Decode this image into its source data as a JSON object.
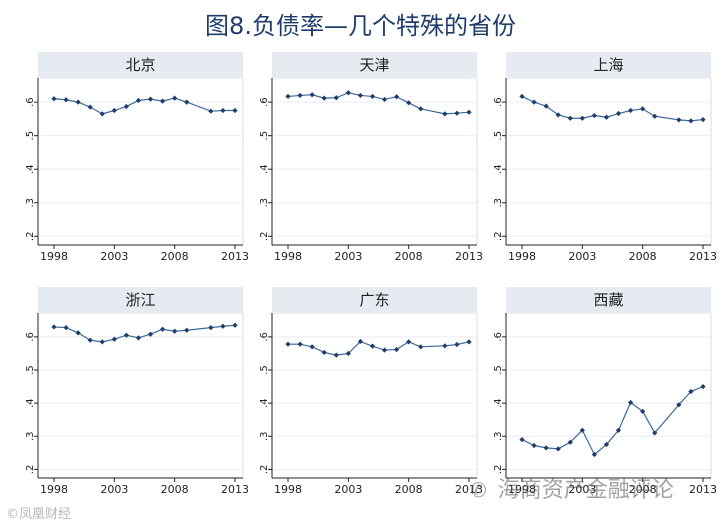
{
  "title": "图8.负债率—几个特殊的省份",
  "watermark_left": "©凤凰财经",
  "watermark_right": "海商资产金融评论",
  "colors": {
    "line": "#3d6a99",
    "marker": "#1f3d6b",
    "panel_bg": "#ffffff",
    "plot_bg": "#e6ebf1",
    "header_bg": "#e6ebf1",
    "title_color": "#1f3d6b"
  },
  "chart_data": [
    {
      "type": "line",
      "title": "北京",
      "x": [
        1998,
        1999,
        2000,
        2001,
        2002,
        2003,
        2004,
        2005,
        2006,
        2007,
        2008,
        2009,
        2011,
        2012,
        2013
      ],
      "y": [
        0.61,
        0.607,
        0.6,
        0.585,
        0.565,
        0.575,
        0.587,
        0.605,
        0.609,
        0.603,
        0.612,
        0.6,
        0.573,
        0.575,
        0.575
      ],
      "xticks": [
        1998,
        2003,
        2008,
        2013
      ],
      "yticks": [
        0.2,
        0.3,
        0.4,
        0.5,
        0.6
      ],
      "ytick_labels": [
        ".2",
        ".3",
        ".4",
        ".5",
        ".6"
      ],
      "xlim": [
        1998,
        2013
      ],
      "ylim": [
        0.18,
        0.66
      ]
    },
    {
      "type": "line",
      "title": "天津",
      "x": [
        1998,
        1999,
        2000,
        2001,
        2002,
        2003,
        2004,
        2005,
        2006,
        2007,
        2008,
        2009,
        2011,
        2012,
        2013
      ],
      "y": [
        0.617,
        0.62,
        0.622,
        0.612,
        0.613,
        0.628,
        0.62,
        0.617,
        0.608,
        0.616,
        0.598,
        0.58,
        0.565,
        0.567,
        0.57
      ],
      "xticks": [
        1998,
        2003,
        2008,
        2013
      ],
      "yticks": [
        0.2,
        0.3,
        0.4,
        0.5,
        0.6
      ],
      "ytick_labels": [
        ".2",
        ".3",
        ".4",
        ".5",
        ".6"
      ],
      "xlim": [
        1998,
        2013
      ],
      "ylim": [
        0.18,
        0.66
      ]
    },
    {
      "type": "line",
      "title": "上海",
      "x": [
        1998,
        1999,
        2000,
        2001,
        2002,
        2003,
        2004,
        2005,
        2006,
        2007,
        2008,
        2009,
        2011,
        2012,
        2013
      ],
      "y": [
        0.617,
        0.6,
        0.588,
        0.562,
        0.552,
        0.552,
        0.56,
        0.555,
        0.566,
        0.575,
        0.58,
        0.558,
        0.547,
        0.544,
        0.548
      ],
      "xticks": [
        1998,
        2003,
        2008,
        2013
      ],
      "yticks": [
        0.2,
        0.3,
        0.4,
        0.5,
        0.6
      ],
      "ytick_labels": [
        ".2",
        ".3",
        ".4",
        ".5",
        ".6"
      ],
      "xlim": [
        1998,
        2013
      ],
      "ylim": [
        0.18,
        0.66
      ]
    },
    {
      "type": "line",
      "title": "浙江",
      "x": [
        1998,
        1999,
        2000,
        2001,
        2002,
        2003,
        2004,
        2005,
        2006,
        2007,
        2008,
        2009,
        2011,
        2012,
        2013
      ],
      "y": [
        0.63,
        0.628,
        0.612,
        0.59,
        0.585,
        0.593,
        0.605,
        0.597,
        0.608,
        0.623,
        0.617,
        0.62,
        0.628,
        0.632,
        0.635
      ],
      "xticks": [
        1998,
        2003,
        2008,
        2013
      ],
      "yticks": [
        0.2,
        0.3,
        0.4,
        0.5,
        0.6
      ],
      "ytick_labels": [
        ".2",
        ".3",
        ".4",
        ".5",
        ".6"
      ],
      "xlim": [
        1998,
        2013
      ],
      "ylim": [
        0.18,
        0.66
      ]
    },
    {
      "type": "line",
      "title": "广东",
      "x": [
        1998,
        1999,
        2000,
        2001,
        2002,
        2003,
        2004,
        2005,
        2006,
        2007,
        2008,
        2009,
        2011,
        2012,
        2013
      ],
      "y": [
        0.578,
        0.578,
        0.57,
        0.553,
        0.545,
        0.55,
        0.586,
        0.572,
        0.56,
        0.562,
        0.585,
        0.57,
        0.573,
        0.577,
        0.585
      ],
      "xticks": [
        1998,
        2003,
        2008,
        2013
      ],
      "yticks": [
        0.2,
        0.3,
        0.4,
        0.5,
        0.6
      ],
      "ytick_labels": [
        ".2",
        ".3",
        ".4",
        ".5",
        ".6"
      ],
      "xlim": [
        1998,
        2013
      ],
      "ylim": [
        0.18,
        0.66
      ]
    },
    {
      "type": "line",
      "title": "西藏",
      "x": [
        1998,
        1999,
        2000,
        2001,
        2002,
        2003,
        2004,
        2005,
        2006,
        2007,
        2008,
        2009,
        2011,
        2012,
        2013
      ],
      "y": [
        0.29,
        0.272,
        0.265,
        0.262,
        0.282,
        0.318,
        0.245,
        0.275,
        0.318,
        0.402,
        0.375,
        0.31,
        0.395,
        0.435,
        0.45
      ],
      "xticks": [
        1998,
        2003,
        2008,
        2013
      ],
      "yticks": [
        0.2,
        0.3,
        0.4,
        0.5,
        0.6
      ],
      "ytick_labels": [
        ".2",
        ".3",
        ".4",
        ".5",
        ".6"
      ],
      "xlim": [
        1998,
        2013
      ],
      "ylim": [
        0.18,
        0.66
      ]
    }
  ]
}
